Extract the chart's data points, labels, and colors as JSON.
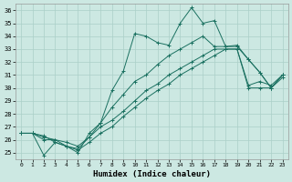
{
  "xlabel": "Humidex (Indice chaleur)",
  "xlim": [
    -0.5,
    23.5
  ],
  "ylim": [
    24.5,
    36.5
  ],
  "yticks": [
    25,
    26,
    27,
    28,
    29,
    30,
    31,
    32,
    33,
    34,
    35,
    36
  ],
  "xticks": [
    0,
    1,
    2,
    3,
    4,
    5,
    6,
    7,
    8,
    9,
    10,
    11,
    12,
    13,
    14,
    15,
    16,
    17,
    18,
    19,
    20,
    21,
    22,
    23
  ],
  "bg_color": "#cce8e2",
  "grid_color": "#aacfc8",
  "line_color": "#1a7060",
  "lines": [
    [
      26.5,
      26.5,
      24.8,
      25.8,
      25.5,
      25.0,
      26.5,
      27.3,
      29.8,
      31.3,
      34.2,
      34.0,
      33.5,
      33.3,
      35.0,
      36.2,
      35.0,
      35.2,
      33.2,
      33.2,
      32.2,
      31.2,
      30.0,
      30.8
    ],
    [
      26.5,
      26.5,
      26.3,
      25.8,
      25.5,
      25.3,
      26.2,
      27.3,
      28.5,
      29.5,
      30.5,
      31.0,
      31.8,
      32.5,
      33.0,
      33.5,
      34.0,
      33.2,
      33.2,
      33.3,
      32.2,
      31.2,
      30.0,
      31.0
    ],
    [
      26.5,
      26.5,
      26.0,
      26.0,
      25.8,
      25.5,
      26.2,
      27.0,
      27.5,
      28.2,
      29.0,
      29.8,
      30.3,
      31.0,
      31.5,
      32.0,
      32.5,
      33.0,
      33.0,
      33.0,
      30.2,
      30.5,
      30.2,
      31.0
    ],
    [
      26.5,
      26.5,
      26.2,
      26.0,
      25.5,
      25.2,
      25.8,
      26.5,
      27.0,
      27.8,
      28.5,
      29.2,
      29.8,
      30.3,
      31.0,
      31.5,
      32.0,
      32.5,
      33.0,
      33.0,
      30.0,
      30.0,
      30.0,
      31.0
    ]
  ]
}
